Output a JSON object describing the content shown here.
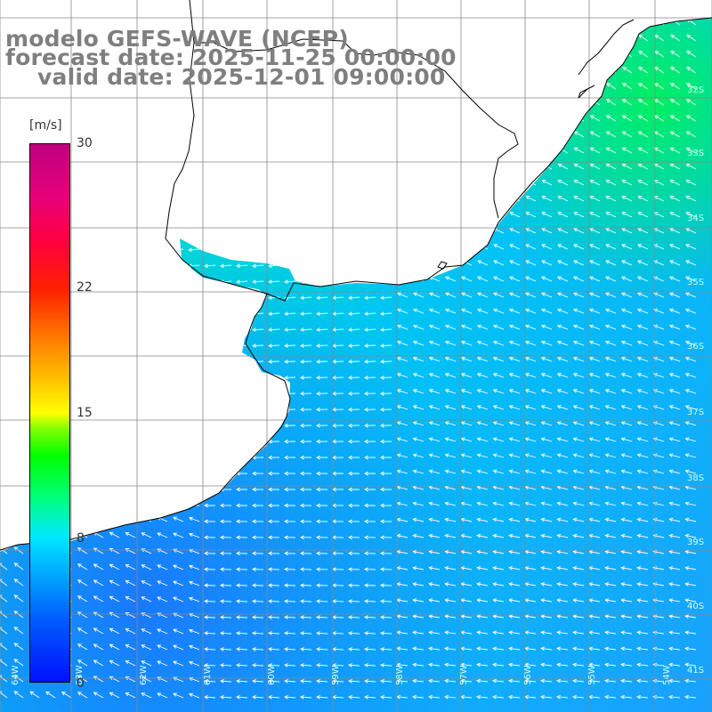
{
  "title": {
    "line1": "modelo GEFS-WAVE (NCEP)",
    "line2": "forecast date: 2025-11-25 00:00:00",
    "line3": "valid date: 2025-12-01 09:00:00"
  },
  "colorbar": {
    "unit": "[m/s]",
    "ticks": [
      {
        "label": "30",
        "value": 30
      },
      {
        "label": "22",
        "value": 22
      },
      {
        "label": "15",
        "value": 15
      },
      {
        "label": "8",
        "value": 8
      },
      {
        "label": "0",
        "value": 0
      }
    ],
    "colors": {
      "low": "#0010ff",
      "mid": "#00ff00",
      "high": "#c00080"
    }
  },
  "field": {
    "description_colors": {
      "coastal_low": "#1a8cff",
      "offshore": "#00ccff",
      "northeast_high": "#00ee88"
    },
    "mean_wind_direction": "from northeast/east, vectors pointing west-northwest"
  },
  "grid": {
    "lat_labels": [
      "32S",
      "33S",
      "34S",
      "35S",
      "36S",
      "37S",
      "38S",
      "39S",
      "40S",
      "41S"
    ],
    "lon_labels": [
      "64W",
      "63W",
      "62W",
      "61W",
      "60W",
      "59W",
      "58W",
      "57W",
      "56W",
      "55W",
      "54W"
    ]
  }
}
